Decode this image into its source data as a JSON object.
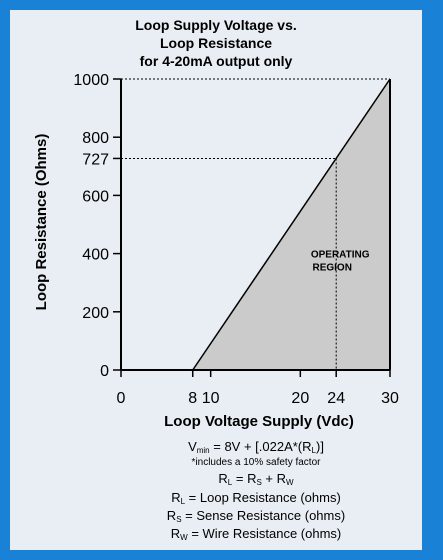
{
  "chart_data": {
    "type": "area",
    "title_lines": [
      "Loop Supply Voltage vs.",
      "Loop Resistance",
      "for 4-20mA output only"
    ],
    "xlabel": "Loop Voltage Supply (Vdc)",
    "ylabel": "Loop Resistance (Ohms)",
    "xlim": [
      0,
      30
    ],
    "ylim": [
      0,
      1000
    ],
    "x_ticks": [
      0,
      8,
      10,
      20,
      24,
      30
    ],
    "x_tick_labels": [
      "0",
      "8",
      "10",
      "20",
      "24",
      "30"
    ],
    "y_ticks": [
      0,
      200,
      400,
      600,
      727,
      800,
      1000
    ],
    "y_tick_labels": [
      "0",
      "200",
      "400",
      "600",
      "727",
      "800",
      "1000"
    ],
    "series": [
      {
        "points": [
          {
            "x": 8,
            "y": 0
          },
          {
            "x": 30,
            "y": 1000
          }
        ]
      }
    ],
    "reference_lines": [
      {
        "kind": "horizontal",
        "y": 1000,
        "x_to": 30,
        "style": "dotted"
      },
      {
        "kind": "horizontal",
        "y": 727,
        "x_to": 24,
        "style": "dotted"
      },
      {
        "kind": "vertical",
        "x": 24,
        "y_to": 727,
        "style": "dotted"
      }
    ],
    "annotations": [
      {
        "line1": "OPERATING",
        "line2": "REGION",
        "x": 24,
        "y": 380
      }
    ],
    "colors": {
      "border": "#1a82d6",
      "background": "#e9eef4",
      "region_fill": "#cbcbcb",
      "line": "#000000"
    }
  },
  "formulas": {
    "vmin": {
      "v": "V",
      "sub_min": "min",
      "rest_a": " = 8V + [.022A*(R",
      "sub_l": "L",
      "rest_b": ")]"
    },
    "note": "*includes a 10% safety factor",
    "rl_eq": {
      "r1": "R",
      "s1": "L",
      "m1": " = R",
      "s2": "S",
      "m2": " + R",
      "s3": "W"
    },
    "defs": [
      {
        "r": "R",
        "s": "L",
        "rest": " = Loop Resistance (ohms)"
      },
      {
        "r": "R",
        "s": "S",
        "rest": " = Sense Resistance (ohms)"
      },
      {
        "r": "R",
        "s": "W",
        "rest": " = Wire Resistance (ohms)"
      }
    ]
  }
}
